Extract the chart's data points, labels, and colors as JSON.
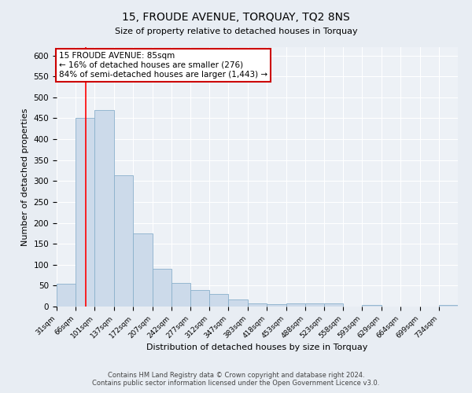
{
  "title": "15, FROUDE AVENUE, TORQUAY, TQ2 8NS",
  "subtitle": "Size of property relative to detached houses in Torquay",
  "xlabel": "Distribution of detached houses by size in Torquay",
  "ylabel": "Number of detached properties",
  "bin_labels": [
    "31sqm",
    "66sqm",
    "101sqm",
    "137sqm",
    "172sqm",
    "207sqm",
    "242sqm",
    "277sqm",
    "312sqm",
    "347sqm",
    "383sqm",
    "418sqm",
    "453sqm",
    "488sqm",
    "523sqm",
    "558sqm",
    "593sqm",
    "629sqm",
    "664sqm",
    "699sqm",
    "734sqm"
  ],
  "bar_values": [
    55,
    450,
    470,
    313,
    175,
    90,
    57,
    40,
    30,
    16,
    7,
    5,
    8,
    8,
    8,
    0,
    3,
    0,
    0,
    0,
    3
  ],
  "bar_color": "#ccdaea",
  "bar_edge_color": "#8ab0cc",
  "bin_edges_values": [
    31,
    66,
    101,
    137,
    172,
    207,
    242,
    277,
    312,
    347,
    383,
    418,
    453,
    488,
    523,
    558,
    593,
    629,
    664,
    699,
    734,
    769
  ],
  "property_size": 85,
  "annotation_title": "15 FROUDE AVENUE: 85sqm",
  "annotation_line1": "← 16% of detached houses are smaller (276)",
  "annotation_line2": "84% of semi-detached houses are larger (1,443) →",
  "annotation_box_color": "#ffffff",
  "annotation_box_edge_color": "#cc0000",
  "ylim": [
    0,
    620
  ],
  "yticks": [
    0,
    50,
    100,
    150,
    200,
    250,
    300,
    350,
    400,
    450,
    500,
    550,
    600
  ],
  "footer1": "Contains HM Land Registry data © Crown copyright and database right 2024.",
  "footer2": "Contains public sector information licensed under the Open Government Licence v3.0.",
  "background_color": "#e8edf3",
  "plot_bg_color": "#edf1f6"
}
